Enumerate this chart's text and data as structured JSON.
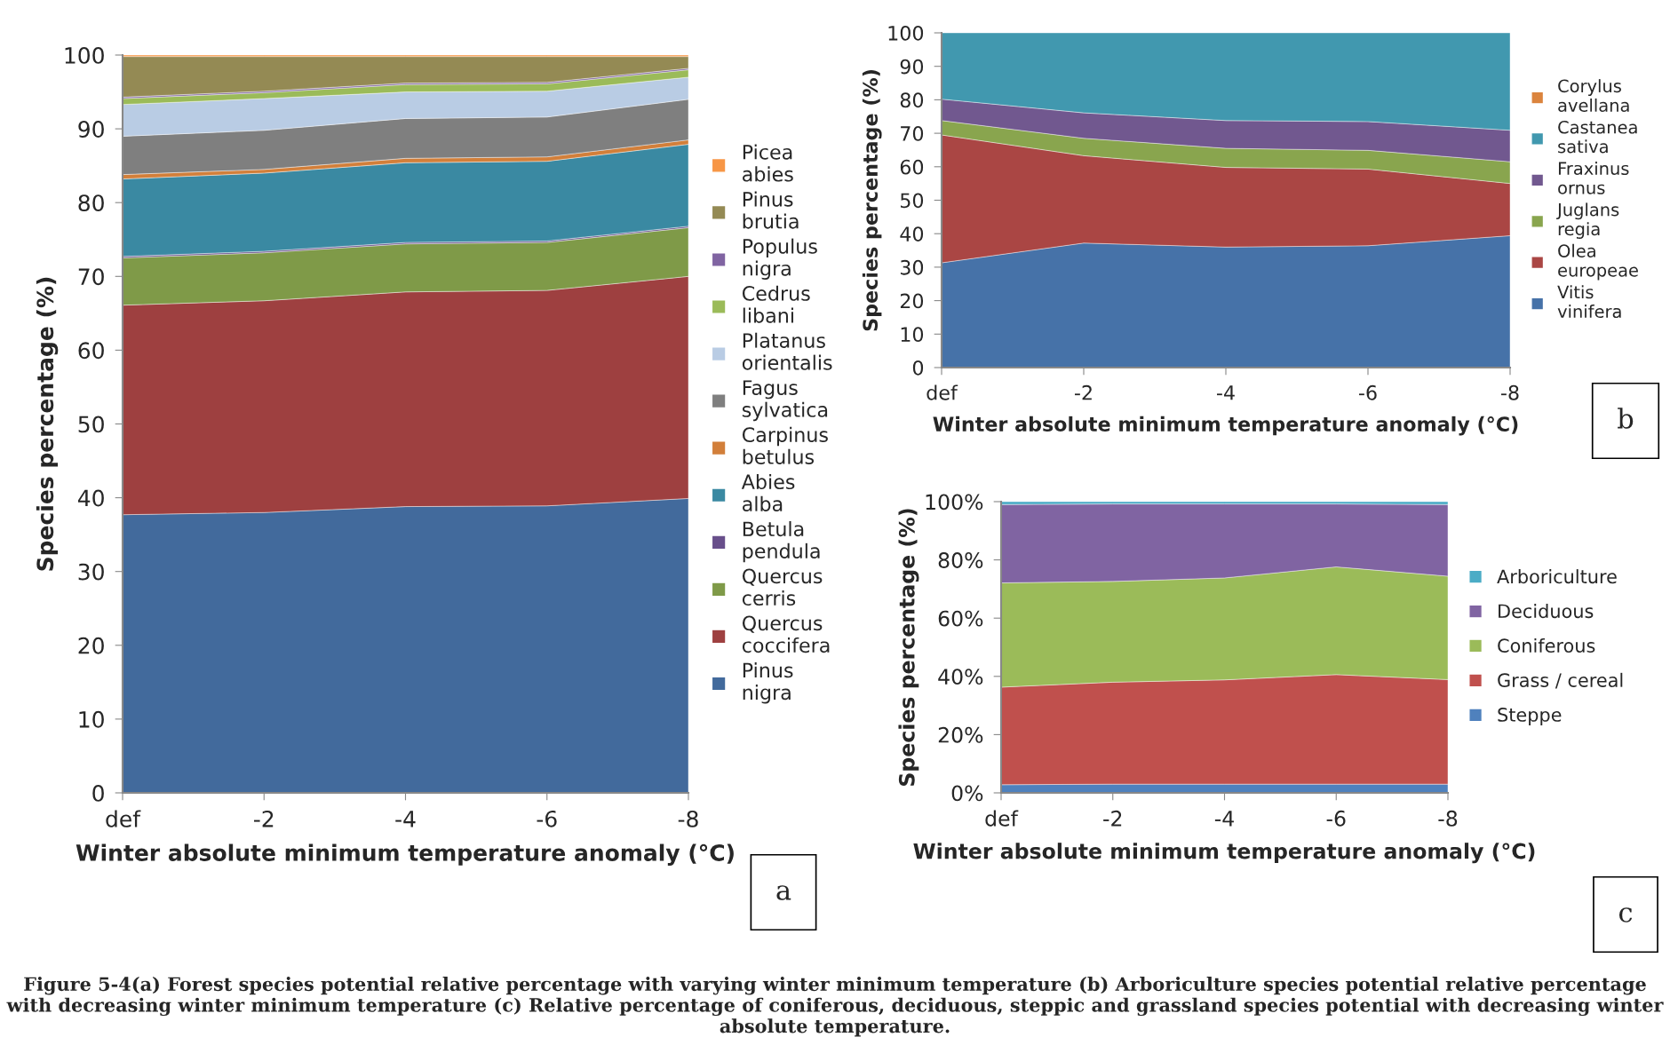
{
  "chart_data": [
    {
      "type": "area",
      "stacked": true,
      "xlabel": "Winter absolute minimum temperature anomaly (°C)",
      "ylabel": "Species percentage (%)",
      "categories": [
        "def",
        "-2",
        "-4",
        "-6",
        "-8"
      ],
      "ylim": [
        0,
        100
      ],
      "yticks": [
        0,
        10,
        20,
        30,
        40,
        50,
        60,
        70,
        80,
        90,
        100
      ],
      "grid": false,
      "legend": "right",
      "series": [
        {
          "name": "Pinus nigra",
          "color": "#426a9c",
          "values": [
            37.7,
            38.0,
            38.8,
            38.9,
            39.9
          ]
        },
        {
          "name": "Quercus coccifera",
          "color": "#9e4040",
          "values": [
            28.4,
            28.7,
            29.1,
            29.2,
            30.1
          ]
        },
        {
          "name": "Quercus cerris",
          "color": "#7f9a48",
          "values": [
            6.4,
            6.5,
            6.5,
            6.5,
            6.6
          ]
        },
        {
          "name": "Betula pendula",
          "color": "#684f8b",
          "values": [
            0.2,
            0.2,
            0.2,
            0.2,
            0.2
          ]
        },
        {
          "name": "Abies alba",
          "color": "#3a89a2",
          "values": [
            10.5,
            10.6,
            10.8,
            10.8,
            11.1
          ]
        },
        {
          "name": "Carpinus betulus",
          "color": "#d27f3a",
          "values": [
            0.6,
            0.5,
            0.6,
            0.6,
            0.6
          ]
        },
        {
          "name": "Fagus sylvatica",
          "color": "#7f7f7f",
          "values": [
            5.2,
            5.3,
            5.4,
            5.4,
            5.5
          ]
        },
        {
          "name": "Platanus orientalis",
          "color": "#b9cce4",
          "values": [
            4.3,
            4.3,
            3.6,
            3.5,
            3.0
          ]
        },
        {
          "name": "Cedrus libani",
          "color": "#9bbb59",
          "values": [
            0.8,
            0.8,
            1.0,
            1.0,
            1.0
          ]
        },
        {
          "name": "Populus nigra",
          "color": "#8064a2",
          "values": [
            0.2,
            0.2,
            0.2,
            0.2,
            0.2
          ]
        },
        {
          "name": "Pinus brutia",
          "color": "#948a54",
          "values": [
            5.5,
            4.7,
            3.6,
            3.5,
            1.6
          ]
        },
        {
          "name": "Picea abies",
          "color": "#f79646",
          "values": [
            0.2,
            0.2,
            0.2,
            0.2,
            0.2
          ]
        }
      ],
      "annotations": [
        "a",
        "Figure 5-4(a) Forest species potential relative percentage with varying winter minimum temperature (b) Arboriculture species potential relative percentage with decreasing winter minimum temperature (c) Relative percentage of coniferous, deciduous, steppic and grassland species potential with decreasing winter absolute temperature."
      ]
    },
    {
      "type": "area",
      "stacked": true,
      "xlabel": "Winter absolute minimum temperature anomaly (°C)",
      "ylabel": "Species percentage (%)",
      "categories": [
        "def",
        "-2",
        "-4",
        "-6",
        "-8"
      ],
      "ylim": [
        0,
        100
      ],
      "yticks": [
        0,
        10,
        20,
        30,
        40,
        50,
        60,
        70,
        80,
        90,
        100
      ],
      "grid": false,
      "legend": "right",
      "series": [
        {
          "name": "Vitis vinifera",
          "color": "#4672a8",
          "values": [
            31.3,
            37.2,
            36.0,
            36.4,
            39.4
          ]
        },
        {
          "name": "Olea europeae",
          "color": "#aa4644",
          "values": [
            38.2,
            26.1,
            23.8,
            22.9,
            15.6
          ]
        },
        {
          "name": "Juglans regia",
          "color": "#89a54e",
          "values": [
            4.3,
            5.2,
            5.7,
            5.6,
            6.5
          ]
        },
        {
          "name": "Fraxinus ornus",
          "color": "#71588f",
          "values": [
            6.4,
            7.6,
            8.3,
            8.6,
            9.4
          ]
        },
        {
          "name": "Castanea sativa",
          "color": "#4198af",
          "values": [
            19.8,
            23.9,
            26.2,
            26.5,
            29.1
          ]
        },
        {
          "name": "Corylus avellana",
          "color": "#db843d",
          "values": [
            null,
            null,
            null,
            null,
            null
          ]
        }
      ],
      "annotations": [
        "b"
      ]
    },
    {
      "type": "area",
      "stacked": true,
      "xlabel": "Winter absolute minimum temperature anomaly (°C)",
      "ylabel": "Species percentage (%)",
      "categories": [
        "def",
        "-2",
        "-4",
        "-6",
        "-8"
      ],
      "ylim": [
        0,
        100
      ],
      "yticks": [
        {
          "value": 0,
          "label": "0%"
        },
        {
          "value": 20,
          "label": "20%"
        },
        {
          "value": 40,
          "label": "40%"
        },
        {
          "value": 60,
          "label": "60%"
        },
        {
          "value": 80,
          "label": "80%"
        },
        {
          "value": 100,
          "label": "100%"
        }
      ],
      "grid": false,
      "legend": "right",
      "series": [
        {
          "name": "Steppe",
          "color": "#4f81bd",
          "values": [
            2.8,
            3.0,
            3.0,
            3.0,
            3.0
          ]
        },
        {
          "name": "Grass / cereal",
          "color": "#c0504d",
          "values": [
            33.5,
            35.0,
            35.8,
            37.6,
            35.9
          ]
        },
        {
          "name": "Coniferous",
          "color": "#9bbb59",
          "values": [
            35.8,
            34.6,
            35.0,
            37.0,
            35.5
          ]
        },
        {
          "name": "Deciduous",
          "color": "#8064a2",
          "values": [
            26.9,
            26.6,
            25.4,
            21.6,
            24.6
          ]
        },
        {
          "name": "Arboriculture",
          "color": "#4bacc6",
          "values": [
            1.0,
            0.8,
            0.8,
            0.8,
            1.0
          ]
        }
      ],
      "annotations": [
        "c"
      ]
    }
  ]
}
